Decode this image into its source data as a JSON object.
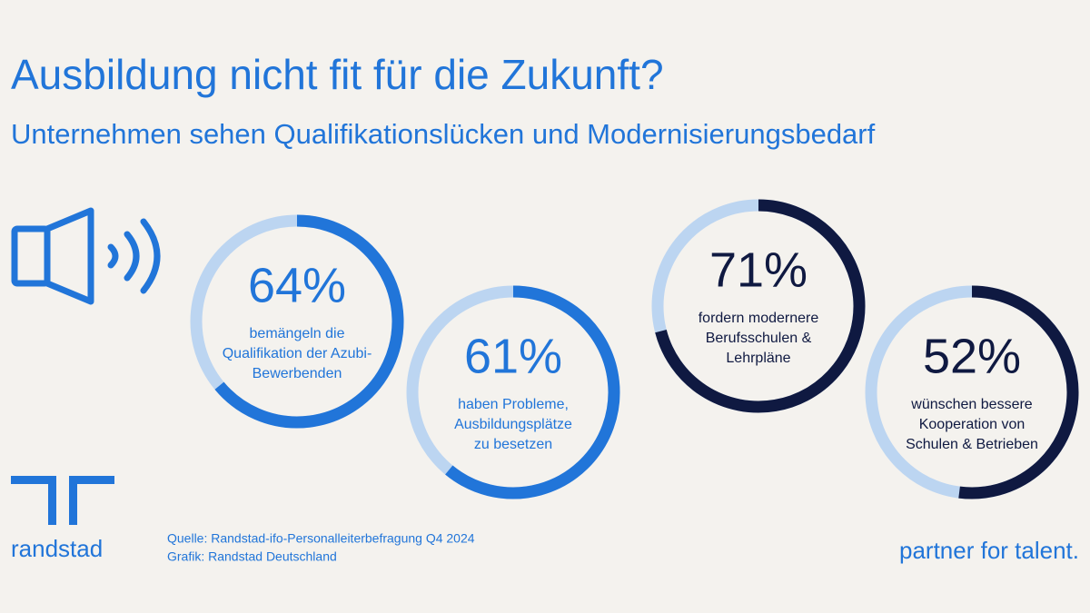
{
  "title": "Ausbildung nicht fit für die Zukunft?",
  "subtitle": "Unternehmen sehen Qualifikationslücken und Modernisierungsbedarf",
  "chart_data": [
    {
      "type": "ring",
      "values": [
        64
      ],
      "value_labels": [
        "64%"
      ],
      "caption": [
        "bemängeln die",
        "Qualifikation der Azubi-",
        "Bewerbenden"
      ],
      "color": "#2175d9",
      "track_color": "#bcd5f1"
    },
    {
      "type": "ring",
      "values": [
        61
      ],
      "value_labels": [
        "61%"
      ],
      "caption": [
        "haben Probleme,",
        "Ausbildungsplätze",
        "zu besetzen"
      ],
      "color": "#2175d9",
      "track_color": "#bcd5f1"
    },
    {
      "type": "ring",
      "values": [
        71
      ],
      "value_labels": [
        "71%"
      ],
      "caption": [
        "fordern modernere",
        "Berufsschulen &",
        "Lehrpläne"
      ],
      "color": "#0f1941",
      "track_color": "#bcd5f1"
    },
    {
      "type": "ring",
      "values": [
        52
      ],
      "value_labels": [
        "52%"
      ],
      "caption": [
        "wünschen bessere",
        "Kooperation von",
        "Schulen & Betrieben"
      ],
      "color": "#0f1941",
      "track_color": "#bcd5f1"
    }
  ],
  "source": "Quelle: Randstad-ifo-Personalleiterbefragung Q4 2024",
  "credit": "Grafik: Randstad Deutschland",
  "brand": "randstad",
  "tagline": "partner for talent."
}
